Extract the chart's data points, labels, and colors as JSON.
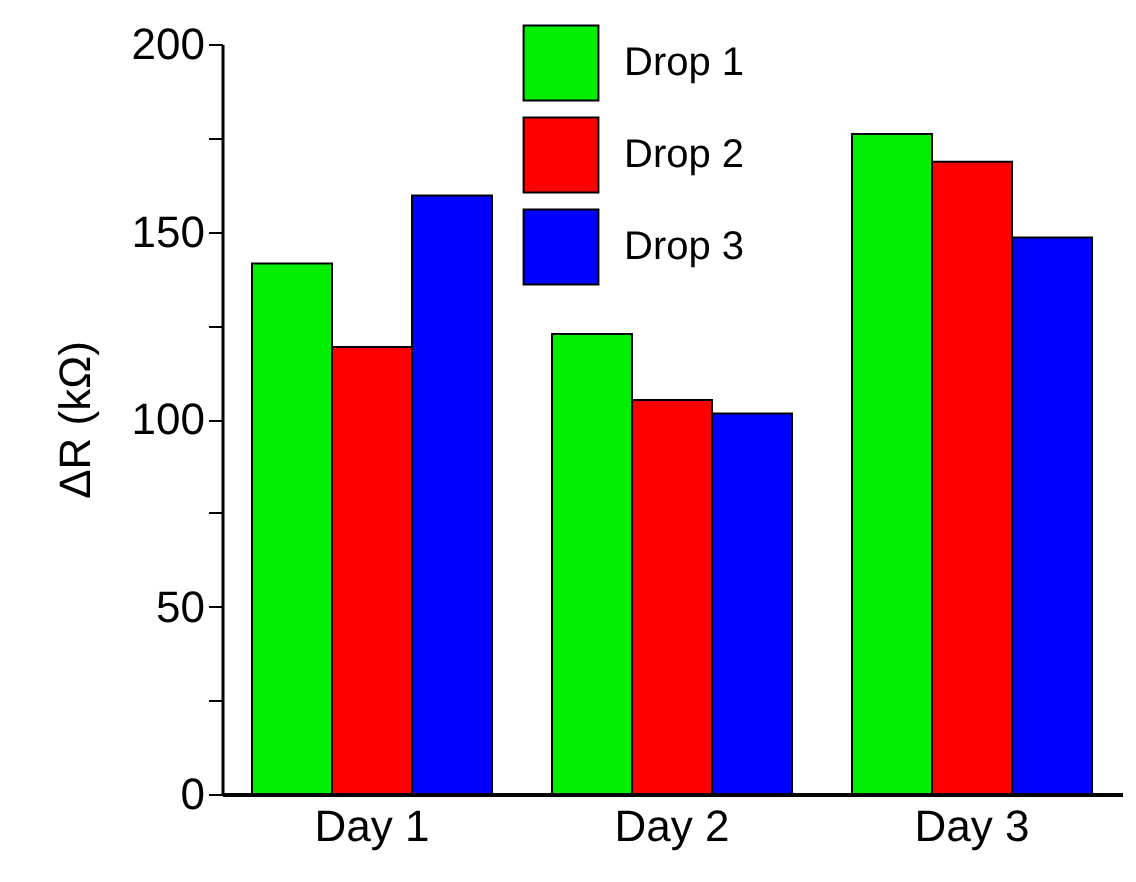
{
  "chart_data": {
    "type": "bar",
    "ylabel": "ΔR (kΩ)",
    "categories": [
      "Day 1",
      "Day 2",
      "Day 3"
    ],
    "series": [
      {
        "name": "Drop 1",
        "color": "#00ee00",
        "values": [
          141.5,
          122.7,
          176
        ]
      },
      {
        "name": "Drop 2",
        "color": "#ff0000",
        "values": [
          119.2,
          105.1,
          168.6
        ]
      },
      {
        "name": "Drop 3",
        "color": "#0000ff",
        "values": [
          159.6,
          101.5,
          148.4
        ]
      }
    ],
    "ylim": [
      0,
      200
    ],
    "yticks": [
      0,
      {
        "value": 25,
        "label": null
      },
      50,
      {
        "value": 75,
        "label": null
      },
      100,
      {
        "value": 125,
        "label": null
      },
      150,
      {
        "value": 175,
        "label": null
      },
      200
    ],
    "legend": "top",
    "grid": false
  }
}
